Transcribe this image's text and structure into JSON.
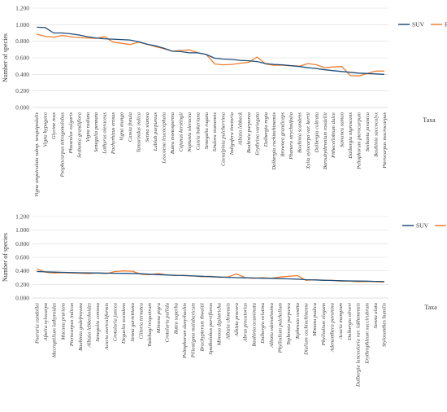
{
  "colors": {
    "suv": "#1f4e79",
    "rfc": "#ed7d31",
    "grid": "#d9d9d9",
    "axis": "#bfbfbf"
  },
  "chart_data": [
    {
      "type": "line",
      "ylabel": "Number of species",
      "xlabel": "Taxa",
      "ylim": [
        0,
        1.2
      ],
      "yticks": [
        "0.000",
        "0.200",
        "0.400",
        "0.600",
        "0.800",
        "1.000",
        "1.200"
      ],
      "legend": "right",
      "categories": [
        "Vigna unguiculata subsp. sesquipedalis",
        "Vigna hypogaea",
        "Glycine max",
        "Psophocarpus tetragonolobus",
        "Phaseolus vulgaris",
        "Sesbania grandiflora",
        "Vigna radiata",
        "Senegalia pennata",
        "Lathyrus oleraceus",
        "Pachyrhizus erosus",
        "Vigna mungo",
        "Cassia fistula",
        "Tamarindus indica",
        "Senna siamea",
        "Lablab purpureus",
        "Leucaena leucocephala",
        "Butea monosperma",
        "Cajanus kerstingii",
        "Neptunia oleracea",
        "Cassia bakeriana",
        "Senegalia rugata",
        "Sindora siamensis",
        "Caesalpinia pulcherrima",
        "Indigofera tinctoria",
        "Albizia lebbeck",
        "Bauhinia purpurea",
        "Erythrina variegata",
        "Dalbergia regia",
        "Dalbergia cochinchinensis",
        "Brownea grandiceps",
        "Phanera strychnifolia",
        "Bauhinia scandens",
        "Xylia xylocarpa var. kerrii",
        "Dalbergia cultrata",
        "Baroubythronium roxdellii",
        "Pithecellobium dulce",
        "Samanea saman",
        "Dalbergia nigrescens",
        "Peltophorum pterocarpum",
        "Sesbania javanica",
        "Bauhinia saccocalyx",
        "Pterocarpus macrocarpus"
      ],
      "series": [
        {
          "name": "SUV",
          "values": [
            0.97,
            0.965,
            0.9,
            0.9,
            0.89,
            0.875,
            0.855,
            0.84,
            0.83,
            0.825,
            0.82,
            0.815,
            0.795,
            0.765,
            0.745,
            0.715,
            0.68,
            0.675,
            0.66,
            0.66,
            0.64,
            0.595,
            0.585,
            0.58,
            0.57,
            0.565,
            0.555,
            0.53,
            0.52,
            0.515,
            0.505,
            0.495,
            0.48,
            0.47,
            0.455,
            0.445,
            0.435,
            0.425,
            0.415,
            0.41,
            0.405,
            0.4
          ]
        },
        {
          "name": "RFC",
          "values": [
            0.885,
            0.86,
            0.85,
            0.87,
            0.855,
            0.845,
            0.84,
            0.835,
            0.855,
            0.79,
            0.775,
            0.76,
            0.79,
            0.765,
            0.735,
            0.71,
            0.68,
            0.69,
            0.695,
            0.66,
            0.64,
            0.525,
            0.515,
            0.52,
            0.535,
            0.545,
            0.61,
            0.525,
            0.51,
            0.51,
            0.505,
            0.5,
            0.53,
            0.515,
            0.48,
            0.49,
            0.495,
            0.385,
            0.38,
            0.41,
            0.44,
            0.44
          ]
        }
      ]
    },
    {
      "type": "line",
      "ylabel": "Number of species",
      "xlabel": "Taxa",
      "ylim": [
        0,
        1.2
      ],
      "yticks": [
        "0.000",
        "0.200",
        "0.400",
        "0.600",
        "0.800",
        "1.000",
        "1.200"
      ],
      "legend": "right",
      "categories": [
        "Pueraria candollei",
        "Afzelia xylocarpa",
        "Macroptilium lathyroides",
        "Mucuna pruriens",
        "Pterocarpus indicus",
        "Bauhinia godefroyana",
        "Albizia lebbeckoides",
        "Senegalia comosa",
        "Acacia auriculiformis",
        "Crotalaria juncea",
        "Deguelia scandens",
        "Senna garrettiana",
        "Clitoria ternatea",
        "Tadehagi triquetrum",
        "Mimosa pigra",
        "Crotalaria pallida",
        "Butea superba",
        "Peltophorum dasyrhachis",
        "Piliostigma malabaricum",
        "Brachypterum thwaitii",
        "Spatholobus parviflorus",
        "Mimosa diplotricha",
        "Albizia chinensis",
        "Albizia procera",
        "Abrus precatorius",
        "Bauhinia acuminata",
        "Dalbergia velutina",
        "Albizia odoratissima",
        "Phyllodium pulchellum",
        "Tephrosia purpurea",
        "Tephrosia vestita",
        "Dialium cochinchinense",
        "Mimosa pudica",
        "Phyllodium elegans",
        "Adenanthera pavonina",
        "Acacia mangium",
        "Dalbergia oliveri",
        "Dalbergia lanceolaria var. lakhonensis",
        "Erythrophleum succirubrum",
        "Senna alata",
        "Stylosanthes humilis"
      ],
      "series": [
        {
          "name": "SUV",
          "values": [
            0.39,
            0.385,
            0.382,
            0.378,
            0.375,
            0.372,
            0.37,
            0.368,
            0.366,
            0.365,
            0.364,
            0.362,
            0.358,
            0.35,
            0.345,
            0.34,
            0.335,
            0.33,
            0.325,
            0.32,
            0.315,
            0.31,
            0.305,
            0.3,
            0.298,
            0.295,
            0.292,
            0.29,
            0.286,
            0.282,
            0.278,
            0.27,
            0.266,
            0.262,
            0.258,
            0.255,
            0.252,
            0.25,
            0.248,
            0.245,
            0.242
          ]
        },
        {
          "name": "RFC",
          "values": [
            0.43,
            0.38,
            0.37,
            0.375,
            0.37,
            0.365,
            0.36,
            0.37,
            0.36,
            0.39,
            0.4,
            0.395,
            0.35,
            0.345,
            0.36,
            0.34,
            0.33,
            0.335,
            0.325,
            0.315,
            0.32,
            0.305,
            0.31,
            0.355,
            0.3,
            0.29,
            0.3,
            0.29,
            0.31,
            0.32,
            0.33,
            0.26,
            0.27,
            0.26,
            0.26,
            0.25,
            0.25,
            0.24,
            0.245,
            0.24,
            0.235
          ]
        }
      ]
    }
  ]
}
